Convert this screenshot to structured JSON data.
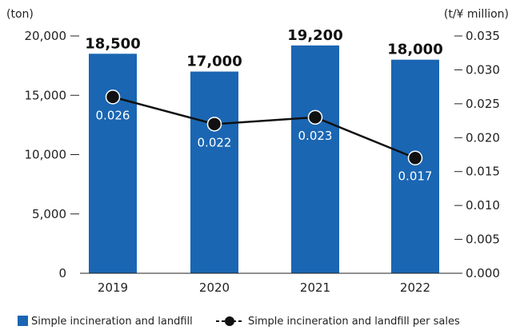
{
  "chart_data": {
    "type": "bar",
    "categories": [
      "2019",
      "2020",
      "2021",
      "2022"
    ],
    "left_axis": {
      "unit": "(ton)",
      "min": 0,
      "max": 20000,
      "ticks": [
        "0",
        "5,000",
        "10,000",
        "15,000",
        "20,000"
      ],
      "tick_values": [
        0,
        5000,
        10000,
        15000,
        20000
      ]
    },
    "right_axis": {
      "unit": "(t/¥ million)",
      "min": 0,
      "max": 0.035,
      "ticks": [
        "0.000",
        "0.005",
        "0.010",
        "0.015",
        "0.020",
        "0.025",
        "0.030",
        "0.035"
      ],
      "tick_values": [
        0,
        0.005,
        0.01,
        0.015,
        0.02,
        0.025,
        0.03,
        0.035
      ]
    },
    "series": [
      {
        "name": "Simple incineration and landfill",
        "kind": "bar",
        "axis": "left",
        "color": "#1a66b3",
        "values": [
          18500,
          17000,
          19200,
          18000
        ],
        "labels": [
          "18,500",
          "17,000",
          "19,200",
          "18,000"
        ]
      },
      {
        "name": "Simple incineration and landfill per sales",
        "kind": "line",
        "axis": "right",
        "color": "#111111",
        "values": [
          0.026,
          0.022,
          0.023,
          0.017
        ],
        "labels": [
          "0.026",
          "0.022",
          "0.023",
          "0.017"
        ]
      }
    ],
    "grid": false,
    "legend_position": "bottom"
  }
}
